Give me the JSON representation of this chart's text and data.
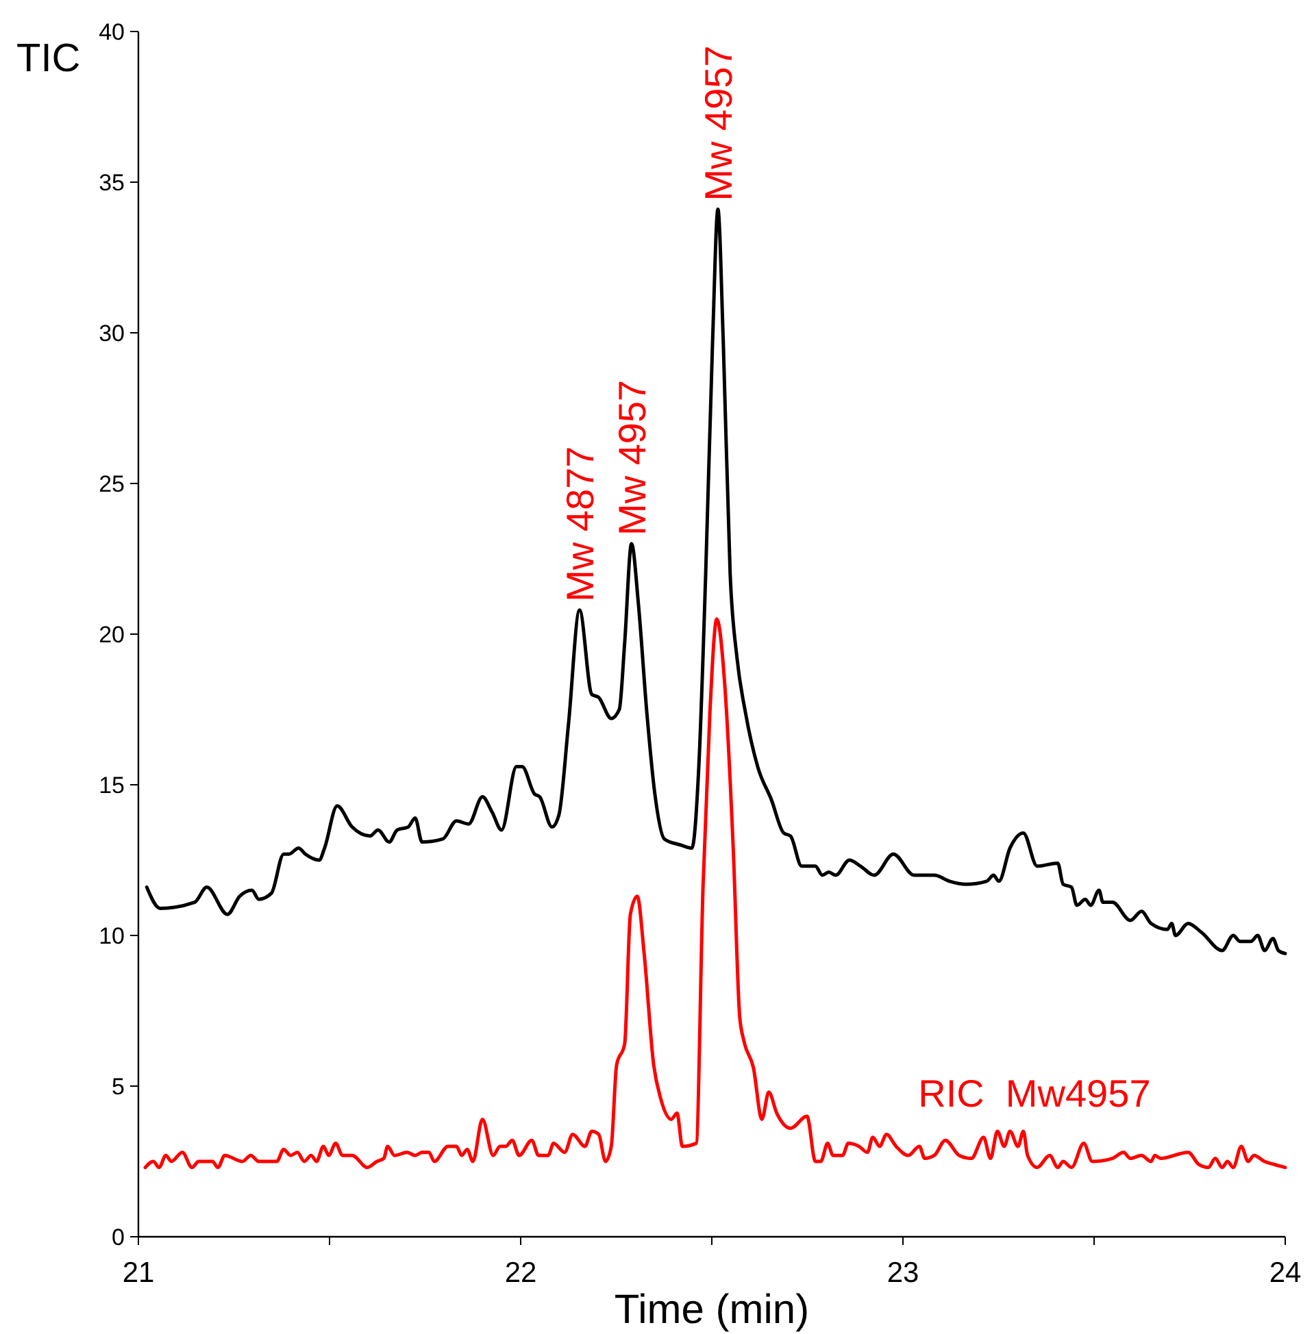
{
  "chart_data": {
    "type": "line",
    "xlabel": "Time (min)",
    "ylabel": "TIC",
    "xlim": [
      21,
      24
    ],
    "ylim": [
      0,
      40
    ],
    "xticks": [
      21,
      {
        "value": 21.5,
        "label": null
      },
      22,
      {
        "value": 22.5,
        "label": null
      },
      23,
      {
        "value": 23.5,
        "label": null
      },
      24
    ],
    "yticks": [
      0,
      5,
      10,
      15,
      20,
      25,
      30,
      35,
      40
    ],
    "grid": false,
    "marker": "none",
    "line_style": "solid",
    "annotations": [
      {
        "text": "Mw 4877",
        "x": 22.154,
        "y": 20.8
      },
      {
        "text": "Mw 4957",
        "x": 22.29,
        "y": 23.0
      },
      {
        "text": "Mw 4957",
        "x": 22.516,
        "y": 34.1
      }
    ],
    "series": [
      {
        "color": "#000000",
        "x": [
          21.022,
          21.057,
          21.147,
          21.179,
          21.233,
          21.265,
          21.297,
          21.315,
          21.348,
          21.38,
          21.394,
          21.419,
          21.437,
          21.473,
          21.487,
          21.52,
          21.559,
          21.606,
          21.627,
          21.656,
          21.677,
          21.706,
          21.724,
          21.742,
          21.796,
          21.832,
          21.864,
          21.9,
          21.925,
          21.95,
          21.989,
          22.004,
          22.036,
          22.05,
          22.082,
          22.1,
          22.125,
          22.154,
          22.186,
          22.204,
          22.237,
          22.258,
          22.272,
          22.29,
          22.308,
          22.33,
          22.351,
          22.376,
          22.419,
          22.448,
          22.466,
          22.484,
          22.502,
          22.516,
          22.53,
          22.548,
          22.566,
          22.588,
          22.62,
          22.656,
          22.688,
          22.706,
          22.735,
          22.771,
          22.789,
          22.806,
          22.824,
          22.86,
          22.889,
          22.925,
          22.975,
          23.029,
          23.082,
          23.122,
          23.165,
          23.219,
          23.237,
          23.251,
          23.28,
          23.315,
          23.351,
          23.405,
          23.419,
          23.441,
          23.455,
          23.477,
          23.491,
          23.513,
          23.523,
          23.548,
          23.595,
          23.624,
          23.649,
          23.692,
          23.703,
          23.713,
          23.746,
          23.781,
          23.835,
          23.864,
          23.882,
          23.91,
          23.928,
          23.946,
          23.968,
          23.982,
          24
        ],
        "values": [
          11.6,
          10.9,
          11.1,
          11.6,
          10.7,
          11.3,
          11.5,
          11.2,
          11.4,
          12.7,
          12.7,
          12.9,
          12.7,
          12.5,
          12.9,
          14.3,
          13.6,
          13.3,
          13.5,
          13.1,
          13.5,
          13.6,
          13.9,
          13.1,
          13.2,
          13.8,
          13.7,
          14.6,
          14.1,
          13.5,
          15.6,
          15.6,
          14.7,
          14.6,
          13.6,
          14.0,
          17.0,
          20.8,
          18.0,
          17.9,
          17.2,
          17.5,
          19.7,
          23.0,
          21.0,
          17.4,
          14.7,
          13.2,
          13.0,
          12.9,
          15.6,
          22.0,
          29.7,
          34.1,
          29.7,
          22.0,
          19.2,
          17.4,
          15.6,
          14.5,
          13.4,
          13.3,
          12.3,
          12.3,
          12.0,
          12.1,
          12.0,
          12.5,
          12.3,
          12.0,
          12.7,
          12.0,
          12.0,
          11.8,
          11.7,
          11.8,
          12.0,
          11.8,
          12.9,
          13.4,
          12.3,
          12.4,
          11.7,
          11.6,
          11.0,
          11.2,
          11.0,
          11.5,
          11.1,
          11.1,
          10.5,
          10.8,
          10.4,
          10.2,
          10.4,
          10.0,
          10.4,
          10.1,
          9.5,
          10.0,
          9.8,
          9.8,
          10.0,
          9.5,
          9.9,
          9.5,
          9.4
        ]
      },
      {
        "name": "RIC  Mw4957",
        "color": "#ff0000",
        "x": [
          21.018,
          21.039,
          21.054,
          21.072,
          21.086,
          21.115,
          21.14,
          21.158,
          21.194,
          21.208,
          21.226,
          21.272,
          21.294,
          21.315,
          21.344,
          21.362,
          21.38,
          21.398,
          21.416,
          21.434,
          21.452,
          21.466,
          21.484,
          21.498,
          21.516,
          21.534,
          21.559,
          21.599,
          21.624,
          21.642,
          21.652,
          21.67,
          21.703,
          21.724,
          21.742,
          21.76,
          21.774,
          21.81,
          21.832,
          21.846,
          21.86,
          21.875,
          21.9,
          21.928,
          21.946,
          21.961,
          21.978,
          21.996,
          22.029,
          22.047,
          22.072,
          22.086,
          22.115,
          22.136,
          22.168,
          22.186,
          22.204,
          22.222,
          22.237,
          22.251,
          22.272,
          22.287,
          22.305,
          22.323,
          22.348,
          22.366,
          22.394,
          22.409,
          22.423,
          22.459,
          22.477,
          22.495,
          22.513,
          22.534,
          22.556,
          22.573,
          22.584,
          22.609,
          22.631,
          22.649,
          22.67,
          22.706,
          22.749,
          22.771,
          22.785,
          22.803,
          22.817,
          22.842,
          22.857,
          22.885,
          22.907,
          22.921,
          22.939,
          22.957,
          22.982,
          23.014,
          23.043,
          23.057,
          23.082,
          23.111,
          23.147,
          23.179,
          23.211,
          23.229,
          23.247,
          23.265,
          23.28,
          23.301,
          23.315,
          23.326,
          23.351,
          23.384,
          23.405,
          23.419,
          23.441,
          23.473,
          23.495,
          23.548,
          23.577,
          23.595,
          23.624,
          23.649,
          23.659,
          23.674,
          23.746,
          23.774,
          23.799,
          23.817,
          23.835,
          23.849,
          23.864,
          23.885,
          23.903,
          23.918,
          23.946,
          23.971,
          24
        ],
        "values": [
          2.3,
          2.5,
          2.3,
          2.7,
          2.5,
          2.8,
          2.3,
          2.5,
          2.5,
          2.3,
          2.7,
          2.5,
          2.7,
          2.5,
          2.5,
          2.5,
          2.9,
          2.7,
          2.8,
          2.5,
          2.7,
          2.5,
          3.0,
          2.7,
          3.1,
          2.7,
          2.7,
          2.3,
          2.5,
          2.6,
          3.0,
          2.7,
          2.8,
          2.7,
          2.8,
          2.8,
          2.5,
          3.0,
          3.0,
          2.7,
          2.9,
          2.5,
          3.9,
          2.7,
          3.0,
          3.0,
          3.2,
          2.7,
          3.2,
          2.7,
          2.7,
          3.1,
          2.8,
          3.4,
          3.0,
          3.5,
          3.4,
          2.5,
          3.0,
          5.7,
          6.4,
          10.7,
          11.3,
          9.4,
          5.7,
          4.6,
          3.9,
          4.1,
          3.0,
          3.1,
          11.6,
          17.4,
          20.5,
          18.3,
          12.9,
          7.3,
          6.5,
          5.6,
          3.9,
          4.8,
          4.1,
          3.6,
          4.0,
          2.5,
          2.5,
          3.1,
          2.7,
          2.7,
          3.1,
          3.0,
          2.8,
          3.3,
          3.0,
          3.4,
          3.0,
          2.7,
          3.0,
          2.6,
          2.7,
          3.2,
          2.7,
          2.6,
          3.3,
          2.6,
          3.5,
          3.0,
          3.5,
          3.0,
          3.5,
          2.7,
          2.3,
          2.7,
          2.3,
          2.5,
          2.3,
          3.1,
          2.5,
          2.6,
          2.8,
          2.6,
          2.7,
          2.5,
          2.7,
          2.6,
          2.8,
          2.4,
          2.3,
          2.6,
          2.3,
          2.5,
          2.3,
          3.0,
          2.5,
          2.7,
          2.5,
          2.4,
          2.3
        ]
      }
    ]
  }
}
